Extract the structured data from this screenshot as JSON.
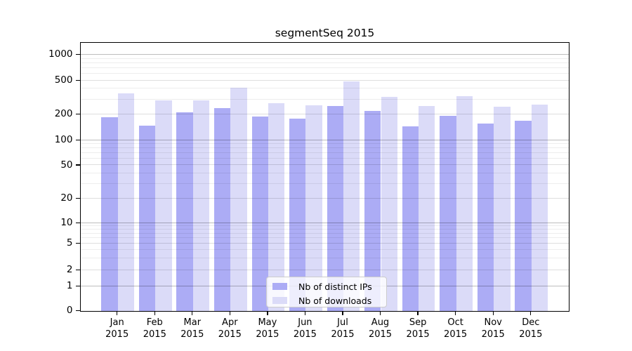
{
  "title": "segmentSeq 2015",
  "chart_data": {
    "type": "bar",
    "title": "segmentSeq 2015",
    "y_scale": "log-like (symlog, 0 baseline with 1-2-5 decade ticks)",
    "grid": true,
    "legend_position": "lower-center",
    "categories": [
      "Jan",
      "Feb",
      "Mar",
      "Apr",
      "May",
      "Jun",
      "Jul",
      "Aug",
      "Sep",
      "Oct",
      "Nov",
      "Dec"
    ],
    "x_year": "2015",
    "y_ticks": [
      0,
      1,
      2,
      5,
      10,
      20,
      50,
      100,
      200,
      500,
      1000
    ],
    "ylim": [
      0,
      1400
    ],
    "series": [
      {
        "name": "Nb of distinct IPs",
        "color": "#acacf5",
        "values": [
          188,
          150,
          212,
          237,
          191,
          181,
          254,
          222,
          146,
          192,
          157,
          169
        ]
      },
      {
        "name": "Nb of downloads",
        "color": "#dbdbf8",
        "values": [
          352,
          291,
          294,
          414,
          273,
          258,
          487,
          320,
          251,
          330,
          246,
          264
        ]
      }
    ]
  }
}
